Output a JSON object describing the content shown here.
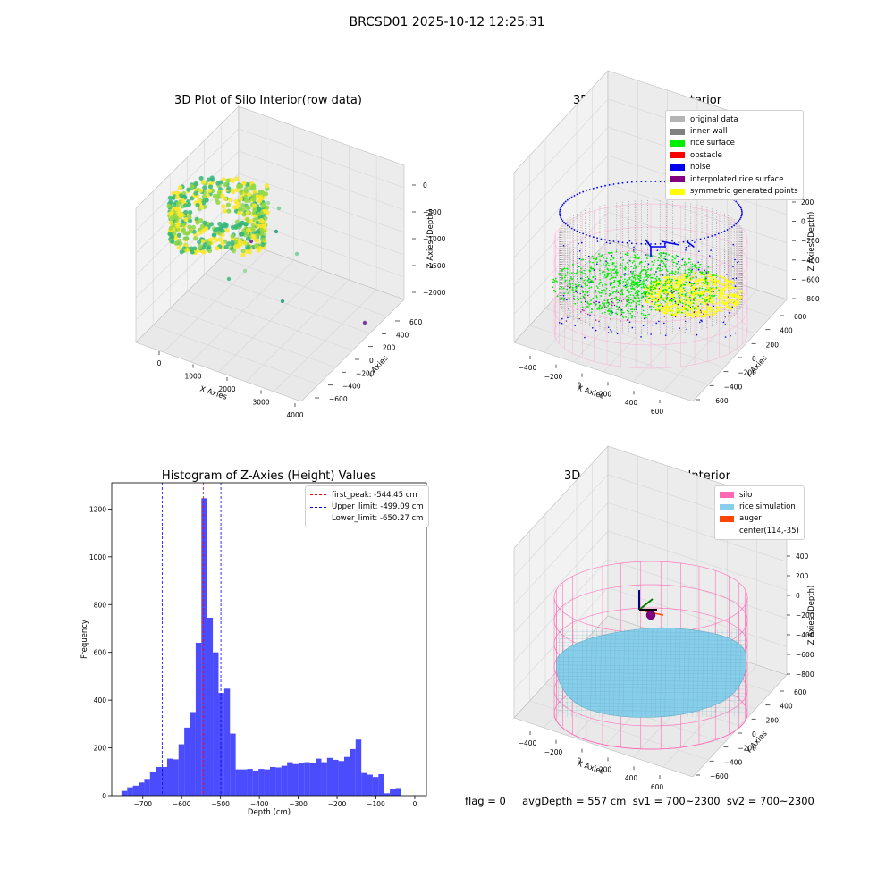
{
  "figure": {
    "suptitle": "BRCSD01 2025-10-12 12:25:31",
    "status_line": "flag = 0     avgDepth = 557 cm  sv1 = 700~2300  sv2 = 700~2300"
  },
  "chart_data": [
    {
      "type": "scatter",
      "subtype": "3d",
      "title": "3D Plot of Silo Interior(row data)",
      "xlabel": "X Axies",
      "ylabel": "Y Axies",
      "zlabel": "Z Axies (Depth)",
      "x_ticks": [
        "0",
        "1000",
        "2000",
        "3000",
        "4000"
      ],
      "y_ticks": [
        "−600",
        "−400",
        "−200",
        "0",
        "200",
        "400",
        "600"
      ],
      "z_ticks": [
        "0",
        "−500",
        "−1000",
        "−1500",
        "−2000"
      ],
      "colormap": [
        "#440154",
        "#31688e",
        "#35b779",
        "#90d743",
        "#fde725"
      ],
      "outliers": [
        {
          "x": 1500,
          "y": 100,
          "z": -700,
          "color": "#9fd9a8"
        },
        {
          "x": 1800,
          "y": 0,
          "z": -900,
          "color": "#7fd3a0"
        },
        {
          "x": 2100,
          "y": 100,
          "z": -1100,
          "color": "#4fc08d"
        },
        {
          "x": 2500,
          "y": 100,
          "z": -1500,
          "color": "#3aa58a"
        },
        {
          "x": 3600,
          "y": 300,
          "z": -2000,
          "color": "#7b3f98"
        }
      ]
    },
    {
      "type": "scatter",
      "subtype": "3d",
      "title": "3D classify of Silo Interior",
      "xlabel": "X Axies",
      "ylabel": "Y Axies",
      "zlabel": "Z Axies (Depth)",
      "x_ticks": [
        "−400",
        "−200",
        "0",
        "200",
        "400",
        "600"
      ],
      "y_ticks": [
        "−600",
        "−400",
        "−200",
        "0",
        "200",
        "400",
        "600"
      ],
      "z_ticks": [
        "200",
        "0",
        "−200",
        "−400",
        "−600",
        "−800"
      ],
      "legend": [
        {
          "label": "original data",
          "color": "#b4b4b4"
        },
        {
          "label": "inner wall",
          "color": "#808080"
        },
        {
          "label": "rice surface",
          "color": "#00ee00"
        },
        {
          "label": "obstacle",
          "color": "#ff0000"
        },
        {
          "label": "noise",
          "color": "#0000ee"
        },
        {
          "label": "interpolated rice surface",
          "color": "#800080"
        },
        {
          "label": "symmetric generated points",
          "color": "#ffff00"
        }
      ],
      "legend_position": "top-right",
      "silo_wall_color": "#ff9fcf"
    },
    {
      "type": "bar",
      "subtype": "histogram",
      "title": "Histogram of Z-Axies (Height) Values",
      "xlabel": "Depth (cm)",
      "ylabel": "Frequency",
      "xlim": [
        -780,
        30
      ],
      "ylim": [
        0,
        1310
      ],
      "x_ticks": [
        -700,
        -600,
        -500,
        -400,
        -300,
        -200,
        -100,
        0
      ],
      "x_tick_labels": [
        "−700",
        "−600",
        "−500",
        "−400",
        "−300",
        "−200",
        "−100",
        "0"
      ],
      "y_ticks": [
        0,
        200,
        400,
        600,
        800,
        1000,
        1200
      ],
      "bin_start": -755,
      "bin_width": 14.7,
      "values": [
        20,
        35,
        42,
        55,
        70,
        100,
        120,
        120,
        155,
        152,
        215,
        285,
        350,
        640,
        1245,
        745,
        600,
        430,
        448,
        260,
        110,
        110,
        112,
        105,
        112,
        110,
        120,
        118,
        125,
        140,
        132,
        138,
        140,
        135,
        155,
        140,
        158,
        150,
        145,
        162,
        195,
        235,
        95,
        88,
        78,
        90,
        10,
        28,
        32
      ],
      "bar_color": "#0000ff",
      "bar_alpha": 0.7,
      "vlines": [
        {
          "label": "first_peak: -544.45 cm",
          "x": -544.45,
          "color": "#ff0000"
        },
        {
          "label": "Upper_limit: -499.09 cm",
          "x": -499.09,
          "color": "#0000ff"
        },
        {
          "label": "Lower_limit: -650.27 cm",
          "x": -650.27,
          "color": "#0000ff"
        }
      ],
      "legend_position": "top-right"
    },
    {
      "type": "scatter",
      "subtype": "3d surface",
      "title": "3D simulation of Silo Interior",
      "xlabel": "X Axies",
      "ylabel": "Y Axies",
      "zlabel": "Z Axies (Depth)",
      "x_ticks": [
        "−400",
        "−200",
        "0",
        "200",
        "400",
        "600"
      ],
      "y_ticks": [
        "−600",
        "−400",
        "−200",
        "0",
        "200",
        "400",
        "600"
      ],
      "z_ticks": [
        "400",
        "200",
        "0",
        "−200",
        "−400",
        "−600",
        "−800"
      ],
      "legend": [
        {
          "label": "silo",
          "color": "#ff69b4"
        },
        {
          "label": "rice simulation",
          "color": "#87ceeb"
        },
        {
          "label": "auger",
          "color": "#ff4500"
        },
        {
          "label": "center(114,-35)",
          "color": ""
        }
      ],
      "legend_position": "top-right"
    }
  ]
}
